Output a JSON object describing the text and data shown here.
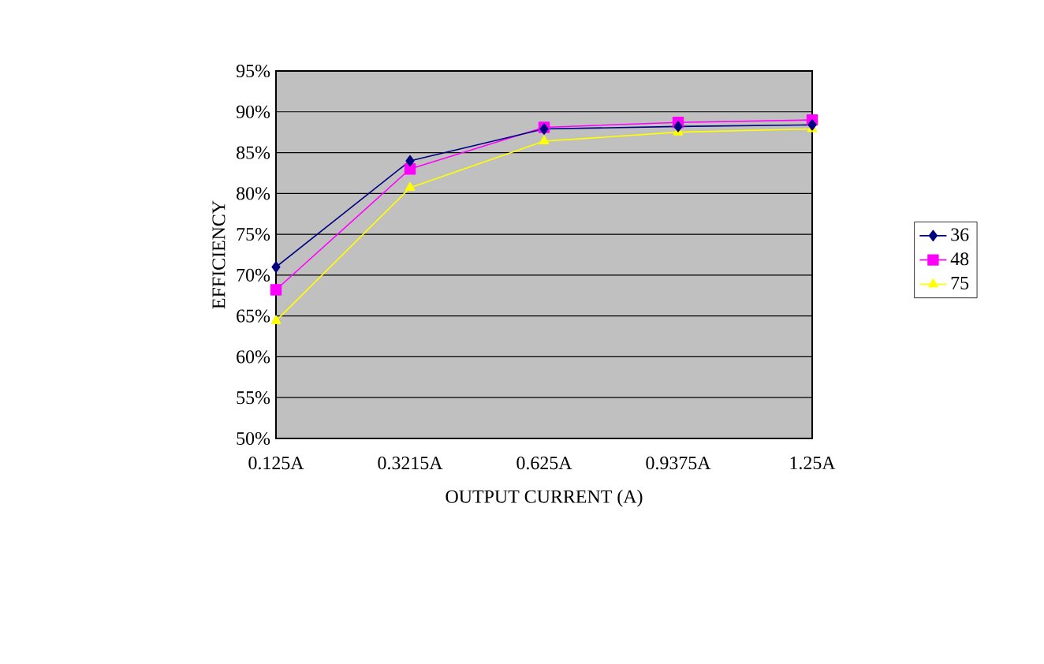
{
  "chart_data": {
    "type": "line",
    "xlabel": "OUTPUT CURRENT (A)",
    "ylabel": "EFFICIENCY",
    "categories": [
      "0.125A",
      "0.3215A",
      "0.625A",
      "0.9375A",
      "1.25A"
    ],
    "series": [
      {
        "name": "36",
        "color": "#000080",
        "marker": "diamond",
        "values": [
          71.0,
          84.0,
          87.9,
          88.2,
          88.4
        ]
      },
      {
        "name": "48",
        "color": "#ff00ff",
        "marker": "square",
        "values": [
          68.2,
          83.0,
          88.1,
          88.7,
          89.0
        ]
      },
      {
        "name": "75",
        "color": "#ffff00",
        "marker": "triangle",
        "values": [
          64.4,
          80.7,
          86.4,
          87.5,
          87.9
        ]
      }
    ],
    "ylim": [
      50,
      95
    ],
    "yticks": [
      {
        "value": 50,
        "label": "50%"
      },
      {
        "value": 55,
        "label": "55%"
      },
      {
        "value": 60,
        "label": "60%"
      },
      {
        "value": 65,
        "label": "65%"
      },
      {
        "value": 70,
        "label": "70%"
      },
      {
        "value": 75,
        "label": "75%"
      },
      {
        "value": 80,
        "label": "80%"
      },
      {
        "value": 85,
        "label": "85%"
      },
      {
        "value": 90,
        "label": "90%"
      },
      {
        "value": 95,
        "label": "95%"
      }
    ],
    "grid": "y",
    "legend": "right",
    "line_style": "solid"
  }
}
